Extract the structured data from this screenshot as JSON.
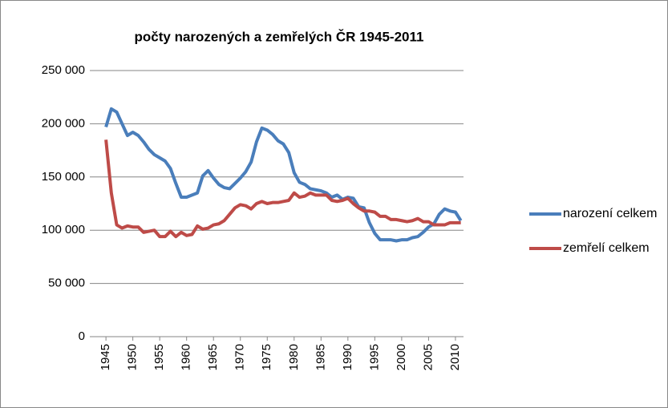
{
  "chart_data": {
    "type": "line",
    "title": "počty narozených a zemřelých ČR 1945-2011",
    "x": [
      1945,
      1946,
      1947,
      1948,
      1949,
      1950,
      1951,
      1952,
      1953,
      1954,
      1955,
      1956,
      1957,
      1958,
      1959,
      1960,
      1961,
      1962,
      1963,
      1964,
      1965,
      1966,
      1967,
      1968,
      1969,
      1970,
      1971,
      1972,
      1973,
      1974,
      1975,
      1976,
      1977,
      1978,
      1979,
      1980,
      1981,
      1982,
      1983,
      1984,
      1985,
      1986,
      1987,
      1988,
      1989,
      1990,
      1991,
      1992,
      1993,
      1994,
      1995,
      1996,
      1997,
      1998,
      1999,
      2000,
      2001,
      2002,
      2003,
      2004,
      2005,
      2006,
      2007,
      2008,
      2009,
      2010,
      2011
    ],
    "series": [
      {
        "name": "narození celkem",
        "color": "#4a7ebb",
        "values": [
          197000,
          214000,
          211000,
          200000,
          189000,
          192000,
          189000,
          183000,
          176000,
          171000,
          168000,
          165000,
          158000,
          144000,
          131000,
          131000,
          133000,
          135000,
          151000,
          156000,
          149000,
          143000,
          140000,
          139000,
          144000,
          149000,
          155000,
          164000,
          183000,
          196000,
          194000,
          190000,
          184000,
          181000,
          173000,
          154000,
          145000,
          143000,
          139000,
          138000,
          137000,
          135000,
          131000,
          133000,
          129000,
          131000,
          130000,
          122000,
          121000,
          107000,
          97000,
          91000,
          91000,
          91000,
          90000,
          91000,
          91000,
          93000,
          94000,
          98000,
          103000,
          106000,
          115000,
          120000,
          118000,
          117000,
          109000
        ]
      },
      {
        "name": "zemřelí celkem",
        "color": "#be4b48",
        "values": [
          185000,
          135000,
          105000,
          102000,
          104000,
          103000,
          103000,
          98000,
          99000,
          100000,
          94000,
          94000,
          99000,
          94000,
          98000,
          95000,
          96000,
          104000,
          101000,
          102000,
          105000,
          106000,
          109000,
          115000,
          121000,
          124000,
          123000,
          120000,
          125000,
          127000,
          125000,
          126000,
          126000,
          127000,
          128000,
          135000,
          131000,
          132000,
          135000,
          133000,
          133000,
          133000,
          128000,
          127000,
          128000,
          130000,
          125000,
          121000,
          118000,
          118000,
          117000,
          113000,
          113000,
          110000,
          110000,
          109000,
          108000,
          109000,
          111000,
          108000,
          108000,
          105000,
          105000,
          105000,
          107000,
          107000,
          107000
        ]
      }
    ],
    "xlim": [
      1942,
      2011.5
    ],
    "xticks": [
      1945,
      1950,
      1955,
      1960,
      1965,
      1970,
      1975,
      1980,
      1985,
      1990,
      1995,
      2000,
      2005,
      2010
    ],
    "ylim": [
      0,
      250000
    ],
    "yticks": [
      0,
      {
        "value": 50000,
        "label": "50 000"
      },
      {
        "value": 100000,
        "label": "100 000"
      },
      {
        "value": 150000,
        "label": "150 000"
      },
      {
        "value": 200000,
        "label": "200 000"
      },
      {
        "value": 250000,
        "label": "250 000"
      }
    ],
    "grid": true,
    "legend": "right"
  }
}
